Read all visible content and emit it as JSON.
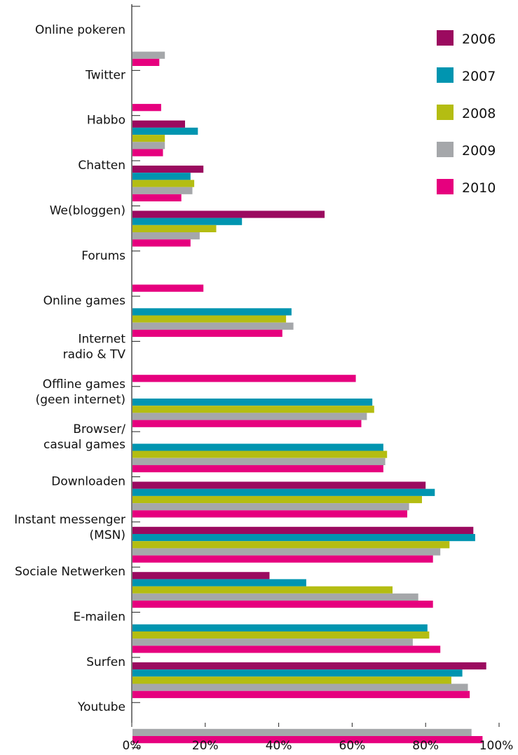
{
  "chart_data": {
    "type": "bar",
    "orientation": "horizontal",
    "categories": [
      [
        "Online pokeren"
      ],
      [
        "Twitter"
      ],
      [
        "Habbo"
      ],
      [
        "Chatten"
      ],
      [
        "We(bloggen)"
      ],
      [
        "Forums"
      ],
      [
        "Online games"
      ],
      [
        "Internet",
        "radio & TV"
      ],
      [
        "Offline games",
        "(geen internet)"
      ],
      [
        "Browser/",
        "casual games"
      ],
      [
        "Downloaden"
      ],
      [
        "Instant messenger",
        "(MSN)"
      ],
      [
        "Sociale Netwerken"
      ],
      [
        "E-mailen"
      ],
      [
        "Surfen"
      ],
      [
        "Youtube"
      ]
    ],
    "series": [
      {
        "name": "2006",
        "color": "#9b0a5f",
        "values": [
          null,
          null,
          14.5,
          19.5,
          52.5,
          null,
          null,
          null,
          null,
          null,
          80,
          93,
          37.5,
          null,
          96.5,
          null
        ]
      },
      {
        "name": "2007",
        "color": "#0095b0",
        "values": [
          null,
          null,
          18,
          16,
          30,
          null,
          43.5,
          null,
          65.5,
          68.5,
          82.5,
          93.5,
          47.5,
          80.5,
          90,
          null
        ]
      },
      {
        "name": "2008",
        "color": "#b4bd12",
        "values": [
          null,
          null,
          9,
          17,
          23,
          null,
          42,
          null,
          66,
          69.5,
          79,
          86.5,
          71,
          81,
          87,
          null
        ]
      },
      {
        "name": "2009",
        "color": "#a5a7aa",
        "values": [
          9,
          null,
          9,
          16.5,
          18.5,
          null,
          44,
          null,
          64,
          69,
          75.5,
          84,
          78,
          76.5,
          91.5,
          92.5
        ]
      },
      {
        "name": "2010",
        "color": "#e6007e",
        "values": [
          7.5,
          8,
          8.5,
          13.5,
          16,
          19.5,
          41,
          61,
          62.5,
          68.5,
          75,
          82,
          82,
          84,
          92,
          95.5
        ]
      }
    ],
    "xticks": [
      "0%",
      "20%",
      "40%",
      "60%",
      "80%",
      "100%"
    ],
    "xlim": [
      0,
      100
    ],
    "legend_position": "top-right",
    "title": "",
    "xlabel": "",
    "ylabel": ""
  }
}
